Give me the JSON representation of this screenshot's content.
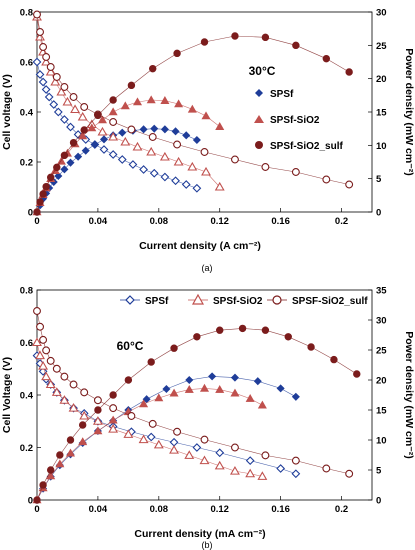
{
  "chart_data": [
    {
      "type": "scatter",
      "panel_label": "(a)",
      "annotation": "30°C",
      "xlabel": "Current density (A cm⁻²)",
      "ylabel": "Cell voltage (V)",
      "y2label": "Power density (mW cm⁻²)",
      "xlim": [
        0,
        0.22
      ],
      "ylim": [
        0,
        0.8
      ],
      "y2lim": [
        0,
        30
      ],
      "xticks": [
        "0",
        "0.04",
        "0.08",
        "0.12",
        "0.16",
        "0.2"
      ],
      "yticks": [
        "0",
        "0.2",
        "0.4",
        "0.6",
        "0.8"
      ],
      "y2ticks": [
        "0",
        "5",
        "10",
        "15",
        "20",
        "25",
        "30"
      ],
      "legend_position": "right-middle",
      "legend_style": "separate",
      "series_labels": [
        "SPSf",
        "SPSf-SiO2",
        "SPSf-SiO2_sulf"
      ],
      "series": [
        {
          "name": "SPSf",
          "color": "#1f3d99",
          "marker": "diamond",
          "voltage": {
            "x": [
              0,
              0.002,
              0.004,
              0.006,
              0.008,
              0.011,
              0.014,
              0.018,
              0.022,
              0.027,
              0.032,
              0.038,
              0.044,
              0.05,
              0.056,
              0.063,
              0.07,
              0.077,
              0.084,
              0.091,
              0.098,
              0.105
            ],
            "y": [
              0.6,
              0.55,
              0.52,
              0.49,
              0.46,
              0.43,
              0.4,
              0.37,
              0.34,
              0.31,
              0.29,
              0.27,
              0.25,
              0.23,
              0.21,
              0.19,
              0.17,
              0.155,
              0.14,
              0.125,
              0.11,
              0.095
            ]
          },
          "power": {
            "x": [
              0,
              0.002,
              0.004,
              0.006,
              0.008,
              0.011,
              0.014,
              0.018,
              0.022,
              0.027,
              0.032,
              0.038,
              0.044,
              0.05,
              0.056,
              0.063,
              0.07,
              0.077,
              0.084,
              0.091,
              0.098,
              0.105
            ],
            "y": [
              0,
              1,
              2,
              2.8,
              3.6,
              4.5,
              5.4,
              6.4,
              7.4,
              8.3,
              9.2,
              10.1,
              10.9,
              11.5,
              11.9,
              12.2,
              12.4,
              12.5,
              12.4,
              12.1,
              11.5,
              10.8
            ]
          }
        },
        {
          "name": "SPSf-SiO2",
          "color": "#c0504d",
          "marker": "triangle",
          "voltage": {
            "x": [
              0,
              0.002,
              0.004,
              0.006,
              0.009,
              0.012,
              0.016,
              0.02,
              0.025,
              0.03,
              0.036,
              0.043,
              0.05,
              0.058,
              0.066,
              0.075,
              0.084,
              0.093,
              0.102,
              0.111,
              0.12
            ],
            "y": [
              0.78,
              0.7,
              0.64,
              0.6,
              0.56,
              0.52,
              0.48,
              0.44,
              0.41,
              0.38,
              0.35,
              0.32,
              0.3,
              0.28,
              0.26,
              0.24,
              0.22,
              0.2,
              0.18,
              0.16,
              0.1
            ]
          },
          "power": {
            "x": [
              0,
              0.002,
              0.004,
              0.006,
              0.009,
              0.012,
              0.016,
              0.02,
              0.025,
              0.03,
              0.036,
              0.043,
              0.05,
              0.058,
              0.066,
              0.075,
              0.084,
              0.093,
              0.102,
              0.111,
              0.12
            ],
            "y": [
              0,
              1.4,
              2.6,
              3.6,
              5,
              6.2,
              7.6,
              8.8,
              10.2,
              11.4,
              12.6,
              13.8,
              15,
              15.9,
              16.5,
              16.8,
              16.7,
              16.2,
              15.4,
              14.4,
              12.8
            ]
          }
        },
        {
          "name": "SPSf-SiO2_sulf",
          "color": "#7b1c1c",
          "marker": "circle",
          "voltage": {
            "x": [
              0,
              0.002,
              0.004,
              0.006,
              0.009,
              0.013,
              0.018,
              0.024,
              0.031,
              0.04,
              0.05,
              0.062,
              0.076,
              0.092,
              0.11,
              0.13,
              0.15,
              0.17,
              0.19,
              0.205
            ],
            "y": [
              0.79,
              0.72,
              0.66,
              0.62,
              0.58,
              0.54,
              0.5,
              0.46,
              0.42,
              0.39,
              0.36,
              0.33,
              0.3,
              0.27,
              0.24,
              0.21,
              0.18,
              0.16,
              0.13,
              0.11
            ]
          },
          "power": {
            "x": [
              0,
              0.002,
              0.004,
              0.006,
              0.009,
              0.013,
              0.018,
              0.024,
              0.031,
              0.04,
              0.05,
              0.062,
              0.076,
              0.092,
              0.11,
              0.13,
              0.15,
              0.17,
              0.19,
              0.205
            ],
            "y": [
              0,
              1.5,
              2.7,
              3.8,
              5.2,
              6.7,
              8.5,
              10.4,
              12.3,
              14.5,
              16.8,
              19,
              21.5,
              23.8,
              25.5,
              26.4,
              26.2,
              25,
              23,
              21
            ]
          }
        }
      ]
    },
    {
      "type": "scatter",
      "panel_label": "(b)",
      "annotation": "60°C",
      "xlabel": "Current density (mA cm⁻²)",
      "ylabel": "Cell Voltage (V)",
      "y2label": "Power density (mW cm⁻²)",
      "xlim": [
        0,
        0.22
      ],
      "ylim": [
        0,
        0.8
      ],
      "y2lim": [
        0,
        35
      ],
      "xticks": [
        "0",
        "0.04",
        "0.08",
        "0.12",
        "0.16",
        "0.2"
      ],
      "yticks": [
        "0",
        "0.2",
        "0.4",
        "0.6",
        "0.8"
      ],
      "y2ticks": [
        "0",
        "5",
        "10",
        "15",
        "20",
        "25",
        "30",
        "35"
      ],
      "legend_position": "top",
      "legend_style": "inline",
      "series_labels": [
        "SPSf",
        "SPSf-SiO2",
        "SPSF-SiO2_sulf"
      ],
      "series": [
        {
          "name": "SPSf",
          "color": "#1f3d99",
          "marker": "diamond",
          "voltage": {
            "x": [
              0,
              0.002,
              0.004,
              0.006,
              0.009,
              0.013,
              0.018,
              0.024,
              0.031,
              0.04,
              0.05,
              0.062,
              0.075,
              0.09,
              0.105,
              0.12,
              0.14,
              0.16,
              0.17
            ],
            "y": [
              0.55,
              0.52,
              0.49,
              0.46,
              0.44,
              0.41,
              0.38,
              0.35,
              0.33,
              0.3,
              0.28,
              0.26,
              0.24,
              0.22,
              0.2,
              0.18,
              0.15,
              0.12,
              0.1
            ]
          },
          "power": {
            "x": [
              0,
              0.004,
              0.009,
              0.015,
              0.022,
              0.03,
              0.04,
              0.05,
              0.06,
              0.072,
              0.085,
              0.1,
              0.115,
              0.13,
              0.145,
              0.16,
              0.17
            ],
            "y": [
              0,
              1.9,
              3.9,
              5.8,
              7.6,
              9.5,
              11.5,
              13.2,
              15,
              16.8,
              18.5,
              20,
              20.6,
              20.4,
              19.8,
              18.6,
              17.2
            ]
          }
        },
        {
          "name": "SPSf-SiO2",
          "color": "#c0504d",
          "marker": "triangle",
          "voltage": {
            "x": [
              0,
              0.002,
              0.004,
              0.006,
              0.009,
              0.013,
              0.018,
              0.024,
              0.031,
              0.04,
              0.05,
              0.06,
              0.07,
              0.08,
              0.09,
              0.1,
              0.11,
              0.12,
              0.13,
              0.14,
              0.148
            ],
            "y": [
              0.6,
              0.55,
              0.51,
              0.47,
              0.44,
              0.41,
              0.38,
              0.35,
              0.32,
              0.3,
              0.27,
              0.25,
              0.23,
              0.21,
              0.19,
              0.17,
              0.15,
              0.13,
              0.11,
              0.1,
              0.09
            ]
          },
          "power": {
            "x": [
              0,
              0.004,
              0.009,
              0.015,
              0.022,
              0.03,
              0.04,
              0.05,
              0.06,
              0.07,
              0.08,
              0.09,
              0.1,
              0.11,
              0.12,
              0.13,
              0.14,
              0.148
            ],
            "y": [
              0,
              2,
              4,
              6,
              7.8,
              9.7,
              11.5,
              13.3,
              14.7,
              16,
              17,
              17.8,
              18.4,
              18.6,
              18.4,
              17.8,
              16.9,
              15.8
            ]
          }
        },
        {
          "name": "SPSF-SiO2_sulf",
          "color": "#7b1c1c",
          "marker": "circle",
          "voltage": {
            "x": [
              0,
              0.002,
              0.004,
              0.006,
              0.009,
              0.013,
              0.018,
              0.024,
              0.031,
              0.04,
              0.05,
              0.062,
              0.076,
              0.092,
              0.11,
              0.13,
              0.15,
              0.17,
              0.19,
              0.205
            ],
            "y": [
              0.72,
              0.66,
              0.61,
              0.57,
              0.53,
              0.5,
              0.47,
              0.44,
              0.41,
              0.38,
              0.35,
              0.32,
              0.29,
              0.26,
              0.23,
              0.2,
              0.17,
              0.15,
              0.12,
              0.1
            ]
          },
          "power": {
            "x": [
              0,
              0.004,
              0.009,
              0.015,
              0.022,
              0.03,
              0.04,
              0.05,
              0.06,
              0.075,
              0.09,
              0.105,
              0.12,
              0.135,
              0.15,
              0.165,
              0.18,
              0.195,
              0.21
            ],
            "y": [
              0,
              2.5,
              5,
              7.5,
              10,
              12.5,
              15,
              17.5,
              20,
              23,
              25.3,
              27.2,
              28.3,
              28.6,
              28.3,
              27.2,
              25.5,
              23.4,
              21
            ]
          }
        }
      ]
    }
  ]
}
